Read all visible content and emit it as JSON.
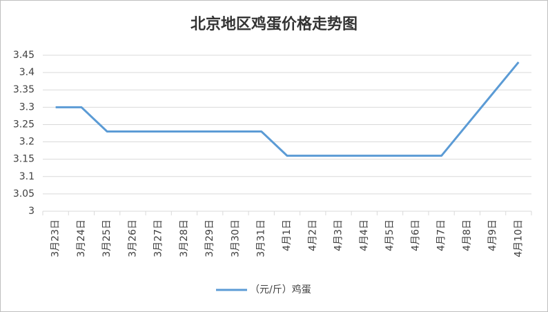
{
  "chart_data": {
    "type": "line",
    "title": "北京地区鸡蛋价格走势图",
    "categories": [
      "3月23日",
      "3月24日",
      "3月25日",
      "3月26日",
      "3月27日",
      "3月28日",
      "3月29日",
      "3月30日",
      "3月31日",
      "4月1日",
      "4月2日",
      "4月3日",
      "4月4日",
      "4月5日",
      "4月6日",
      "4月7日",
      "4月8日",
      "4月9日",
      "4月10日"
    ],
    "series": [
      {
        "name": "（元/斤）鸡蛋",
        "color": "#5b9bd5",
        "values": [
          3.3,
          3.3,
          3.23,
          3.23,
          3.23,
          3.23,
          3.23,
          3.23,
          3.23,
          3.16,
          3.16,
          3.16,
          3.16,
          3.16,
          3.16,
          3.16,
          3.25,
          3.34,
          3.43
        ]
      }
    ],
    "ylim": [
      3,
      3.45
    ],
    "yticks": [
      3,
      3.05,
      3.1,
      3.15,
      3.2,
      3.25,
      3.3,
      3.35,
      3.4,
      3.45
    ],
    "grid": true,
    "legend": "bottom"
  }
}
